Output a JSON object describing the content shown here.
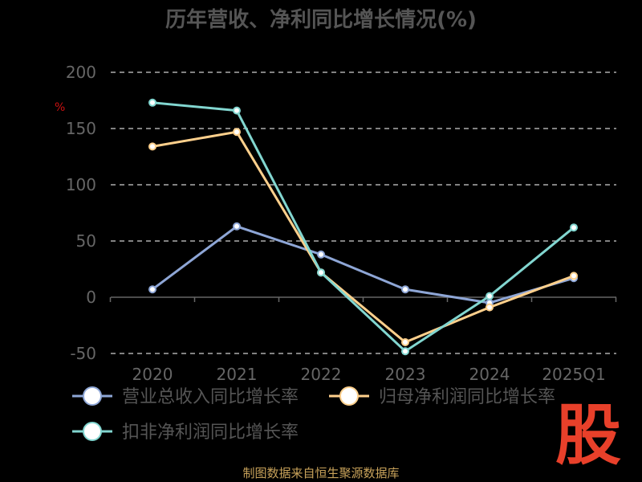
{
  "title": "历年营收、净利同比增长情况(%)",
  "source": "制图数据来自恒生聚源数据库",
  "logo_text": "股",
  "colors": {
    "background": "#000000",
    "grid": "#cfcfcf",
    "axis": "#666666",
    "tick_text": "#666666",
    "unit_text": "#cc1111"
  },
  "chart_data": {
    "type": "line",
    "title": "历年营收、净利同比增长情况(%)",
    "ylabel": "%",
    "categories": [
      "2020",
      "2021",
      "2022",
      "2023",
      "2024",
      "2025Q1"
    ],
    "ylim": [
      -50,
      200
    ],
    "yticks": [
      -50,
      0,
      50,
      100,
      150,
      200
    ],
    "grid": "dashed-horizontal",
    "legend_position": "bottom",
    "series": [
      {
        "name": "营业总收入同比增长率",
        "color": "#8ea6d6",
        "values": [
          7,
          63,
          38,
          7,
          -5,
          17
        ]
      },
      {
        "name": "归母净利润同比增长率",
        "color": "#ffd08c",
        "values": [
          134,
          147,
          22,
          -40,
          -9,
          19
        ]
      },
      {
        "name": "扣非净利润同比增长率",
        "color": "#82d6d0",
        "values": [
          173,
          166,
          22,
          -48,
          1,
          62
        ]
      }
    ]
  }
}
